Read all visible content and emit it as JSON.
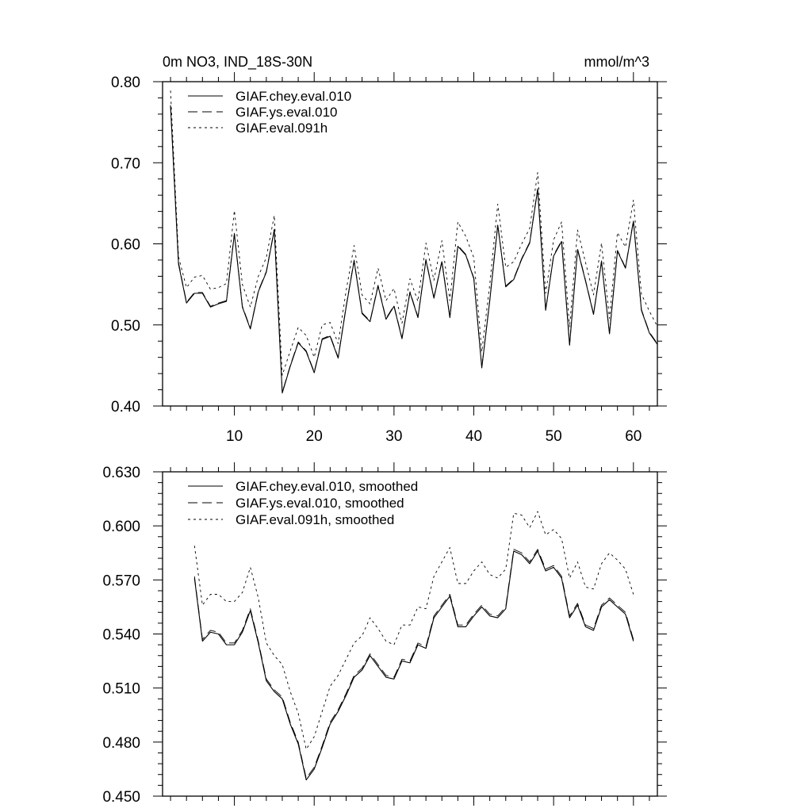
{
  "chart_data": [
    {
      "type": "line",
      "title_left": "0m NO3, IND_18S-30N",
      "title_right": "mmol/m^3",
      "xlabel": "",
      "ylabel": "",
      "xlim": [
        1,
        63
      ],
      "ylim": [
        0.4,
        0.8
      ],
      "x_ticks": [
        10,
        20,
        30,
        40,
        50,
        60
      ],
      "x_tick_labels": [
        "10",
        "20",
        "30",
        "40",
        "50",
        "60"
      ],
      "y_ticks": [
        0.4,
        0.5,
        0.6,
        0.7,
        0.8
      ],
      "y_tick_labels": [
        "0.40",
        "0.50",
        "0.60",
        "0.70",
        "0.80"
      ],
      "legend_position": "top-left",
      "x": [
        2,
        3,
        4,
        5,
        6,
        7,
        8,
        9,
        10,
        11,
        12,
        13,
        14,
        15,
        16,
        17,
        18,
        19,
        20,
        21,
        22,
        23,
        24,
        25,
        26,
        27,
        28,
        29,
        30,
        31,
        32,
        33,
        34,
        35,
        36,
        37,
        38,
        39,
        40,
        41,
        42,
        43,
        44,
        45,
        46,
        47,
        48,
        49,
        50,
        51,
        52,
        53,
        54,
        55,
        56,
        57,
        58,
        59,
        60,
        61,
        62,
        63
      ],
      "series": [
        {
          "name": "GIAF.chey.eval.010",
          "dash": "solid",
          "values": [
            0.77,
            0.575,
            0.527,
            0.539,
            0.539,
            0.522,
            0.526,
            0.529,
            0.612,
            0.522,
            0.495,
            0.541,
            0.565,
            0.617,
            0.416,
            0.449,
            0.478,
            0.467,
            0.441,
            0.482,
            0.486,
            0.459,
            0.522,
            0.579,
            0.514,
            0.504,
            0.548,
            0.507,
            0.523,
            0.483,
            0.54,
            0.509,
            0.58,
            0.533,
            0.578,
            0.509,
            0.597,
            0.586,
            0.557,
            0.447,
            0.53,
            0.623,
            0.547,
            0.556,
            0.581,
            0.601,
            0.667,
            0.518,
            0.585,
            0.603,
            0.475,
            0.593,
            0.554,
            0.513,
            0.578,
            0.489,
            0.591,
            0.57,
            0.628,
            0.518,
            0.49,
            0.476
          ]
        },
        {
          "name": "GIAF.ys.eval.010",
          "dash": "dashed",
          "values": [
            0.771,
            0.577,
            0.528,
            0.54,
            0.54,
            0.523,
            0.527,
            0.53,
            0.613,
            0.523,
            0.496,
            0.542,
            0.566,
            0.618,
            0.417,
            0.45,
            0.479,
            0.468,
            0.442,
            0.483,
            0.487,
            0.46,
            0.523,
            0.58,
            0.515,
            0.505,
            0.549,
            0.508,
            0.524,
            0.484,
            0.541,
            0.51,
            0.581,
            0.534,
            0.579,
            0.51,
            0.598,
            0.587,
            0.558,
            0.448,
            0.531,
            0.624,
            0.548,
            0.557,
            0.582,
            0.602,
            0.668,
            0.519,
            0.586,
            0.604,
            0.476,
            0.594,
            0.555,
            0.514,
            0.579,
            0.49,
            0.592,
            0.571,
            0.629,
            0.519,
            0.491,
            0.477
          ]
        },
        {
          "name": "GIAF.eval.091h",
          "dash": "dotted",
          "values": [
            0.789,
            0.584,
            0.546,
            0.559,
            0.561,
            0.544,
            0.546,
            0.551,
            0.641,
            0.55,
            0.522,
            0.56,
            0.583,
            0.635,
            0.438,
            0.468,
            0.497,
            0.487,
            0.46,
            0.5,
            0.503,
            0.477,
            0.542,
            0.598,
            0.537,
            0.526,
            0.57,
            0.53,
            0.545,
            0.502,
            0.557,
            0.529,
            0.601,
            0.555,
            0.604,
            0.53,
            0.627,
            0.609,
            0.583,
            0.467,
            0.55,
            0.649,
            0.571,
            0.578,
            0.6,
            0.619,
            0.688,
            0.539,
            0.605,
            0.627,
            0.497,
            0.617,
            0.577,
            0.537,
            0.601,
            0.508,
            0.614,
            0.596,
            0.654,
            0.538,
            0.517,
            0.498
          ]
        }
      ]
    },
    {
      "type": "line",
      "title_left": "",
      "title_right": "",
      "xlabel": "",
      "ylabel": "",
      "xlim": [
        1,
        63
      ],
      "ylim": [
        0.45,
        0.63
      ],
      "x_ticks": [
        10,
        20,
        30,
        40,
        50,
        60
      ],
      "x_tick_labels": [],
      "y_ticks": [
        0.45,
        0.48,
        0.51,
        0.54,
        0.57,
        0.6,
        0.63
      ],
      "y_tick_labels": [
        "0.450",
        "0.480",
        "0.510",
        "0.540",
        "0.570",
        "0.600",
        "0.630"
      ],
      "legend_position": "top-left",
      "x": [
        5,
        6,
        7,
        8,
        9,
        10,
        11,
        12,
        13,
        14,
        15,
        16,
        17,
        18,
        19,
        20,
        21,
        22,
        23,
        24,
        25,
        26,
        27,
        28,
        29,
        30,
        31,
        32,
        33,
        34,
        35,
        36,
        37,
        38,
        39,
        40,
        41,
        42,
        43,
        44,
        45,
        46,
        47,
        48,
        49,
        50,
        51,
        52,
        53,
        54,
        55,
        56,
        57,
        58,
        59,
        60
      ],
      "series": [
        {
          "name": "GIAF.chey.eval.010, smoothed",
          "dash": "solid",
          "values": [
            0.571,
            0.536,
            0.541,
            0.54,
            0.534,
            0.534,
            0.541,
            0.553,
            0.535,
            0.514,
            0.508,
            0.504,
            0.49,
            0.479,
            0.459,
            0.465,
            0.477,
            0.49,
            0.497,
            0.506,
            0.516,
            0.52,
            0.528,
            0.522,
            0.516,
            0.515,
            0.525,
            0.524,
            0.534,
            0.532,
            0.549,
            0.555,
            0.561,
            0.544,
            0.544,
            0.55,
            0.555,
            0.55,
            0.549,
            0.554,
            0.586,
            0.584,
            0.579,
            0.586,
            0.575,
            0.577,
            0.571,
            0.549,
            0.556,
            0.544,
            0.542,
            0.555,
            0.559,
            0.555,
            0.551,
            0.536
          ]
        },
        {
          "name": "GIAF.ys.eval.010, smoothed",
          "dash": "dashed",
          "values": [
            0.572,
            0.537,
            0.542,
            0.541,
            0.535,
            0.535,
            0.542,
            0.554,
            0.536,
            0.515,
            0.509,
            0.505,
            0.491,
            0.48,
            0.46,
            0.466,
            0.478,
            0.491,
            0.498,
            0.507,
            0.517,
            0.521,
            0.529,
            0.523,
            0.517,
            0.516,
            0.526,
            0.525,
            0.535,
            0.533,
            0.55,
            0.556,
            0.562,
            0.545,
            0.545,
            0.551,
            0.556,
            0.551,
            0.55,
            0.555,
            0.587,
            0.585,
            0.58,
            0.587,
            0.576,
            0.578,
            0.572,
            0.55,
            0.557,
            0.545,
            0.543,
            0.556,
            0.56,
            0.556,
            0.552,
            0.537
          ]
        },
        {
          "name": "GIAF.eval.091h, smoothed",
          "dash": "dotted",
          "values": [
            0.589,
            0.556,
            0.562,
            0.562,
            0.558,
            0.558,
            0.563,
            0.577,
            0.56,
            0.535,
            0.528,
            0.523,
            0.508,
            0.496,
            0.476,
            0.483,
            0.497,
            0.511,
            0.517,
            0.526,
            0.535,
            0.539,
            0.549,
            0.543,
            0.536,
            0.534,
            0.545,
            0.545,
            0.555,
            0.554,
            0.572,
            0.58,
            0.588,
            0.568,
            0.568,
            0.575,
            0.58,
            0.573,
            0.571,
            0.576,
            0.607,
            0.606,
            0.599,
            0.608,
            0.595,
            0.598,
            0.593,
            0.571,
            0.58,
            0.566,
            0.565,
            0.579,
            0.585,
            0.581,
            0.576,
            0.562
          ]
        }
      ]
    }
  ]
}
